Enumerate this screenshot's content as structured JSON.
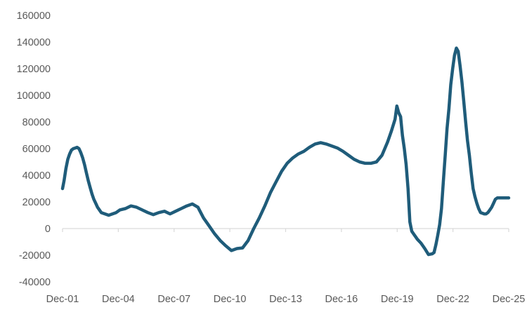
{
  "chart_data": {
    "type": "line",
    "title": "",
    "xlabel": "",
    "ylabel": "",
    "ylim": [
      -40000,
      160000
    ],
    "yticks": [
      160000,
      140000,
      120000,
      100000,
      80000,
      60000,
      40000,
      20000,
      0,
      -20000,
      -40000
    ],
    "xticks": [
      "Dec-01",
      "Dec-04",
      "Dec-07",
      "Dec-10",
      "Dec-13",
      "Dec-16",
      "Dec-19",
      "Dec-22",
      "Dec-25"
    ],
    "x_range": [
      2001.917,
      2025.917
    ],
    "grid": false,
    "legend": "none",
    "line_color": "#1f5c7a",
    "axis_color": "#d9d9d9",
    "series": [
      {
        "x": [
          2001.917,
          2002.0,
          2002.1,
          2002.2,
          2002.3,
          2002.4,
          2002.5,
          2002.6,
          2002.7,
          2002.8,
          2002.9,
          2003.0,
          2003.1,
          2003.2,
          2003.3,
          2003.4,
          2003.5,
          2003.6,
          2003.7,
          2003.8,
          2003.9,
          2004.0,
          2004.2,
          2004.4,
          2004.6,
          2004.8,
          2005.0,
          2005.3,
          2005.6,
          2005.9,
          2006.2,
          2006.5,
          2006.8,
          2007.1,
          2007.4,
          2007.7,
          2008.0,
          2008.3,
          2008.6,
          2008.9,
          2009.2,
          2009.5,
          2009.8,
          2010.1,
          2010.4,
          2010.7,
          2011.0,
          2011.3,
          2011.6,
          2011.9,
          2012.2,
          2012.5,
          2012.8,
          2013.1,
          2013.4,
          2013.7,
          2014.0,
          2014.3,
          2014.6,
          2014.9,
          2015.2,
          2015.5,
          2015.8,
          2016.1,
          2016.4,
          2016.7,
          2017.0,
          2017.3,
          2017.6,
          2017.9,
          2018.2,
          2018.5,
          2018.8,
          2019.1,
          2019.4,
          2019.6,
          2019.8,
          2019.9,
          2020.0,
          2020.1,
          2020.2,
          2020.3,
          2020.4,
          2020.5,
          2020.6,
          2020.7,
          2020.8,
          2020.9,
          2021.0,
          2021.2,
          2021.4,
          2021.6,
          2021.8,
          2021.9,
          2022.0,
          2022.1,
          2022.2,
          2022.3,
          2022.4,
          2022.5,
          2022.6,
          2022.7,
          2022.8,
          2022.9,
          2023.0,
          2023.1,
          2023.2,
          2023.3,
          2023.4,
          2023.5,
          2023.6,
          2023.7,
          2023.8,
          2023.9,
          2024.0,
          2024.1,
          2024.2,
          2024.3,
          2024.4,
          2024.5,
          2024.6,
          2024.7,
          2024.8,
          2024.9,
          2025.0,
          2025.1,
          2025.2,
          2025.3,
          2025.4,
          2025.5,
          2025.6,
          2025.7,
          2025.8,
          2025.917
        ],
        "values": [
          30000,
          36000,
          45000,
          52000,
          56000,
          59000,
          60000,
          60500,
          61000,
          60000,
          57000,
          53000,
          48000,
          42000,
          36000,
          31000,
          26000,
          22000,
          19000,
          16000,
          14000,
          12000,
          11000,
          10000,
          11000,
          12000,
          14000,
          15000,
          17000,
          16000,
          14000,
          12000,
          10500,
          12000,
          13000,
          11000,
          13000,
          15000,
          17000,
          18500,
          16000,
          8000,
          2000,
          -4000,
          -9000,
          -13000,
          -16500,
          -15000,
          -14500,
          -9000,
          0,
          8000,
          17000,
          27000,
          35000,
          43000,
          49000,
          53000,
          56000,
          58000,
          61000,
          63500,
          64500,
          63500,
          62000,
          60500,
          58000,
          55000,
          52000,
          50000,
          49000,
          49000,
          50000,
          55000,
          65000,
          73000,
          82000,
          92000,
          87000,
          84000,
          70000,
          60000,
          48000,
          30000,
          5000,
          -2000,
          -4000,
          -6000,
          -8000,
          -11000,
          -15000,
          -19500,
          -19000,
          -18000,
          -12000,
          -5000,
          3000,
          15000,
          35000,
          55000,
          75000,
          90000,
          108000,
          120000,
          130000,
          135500,
          133000,
          122000,
          110000,
          95000,
          80000,
          66000,
          55000,
          42000,
          30000,
          24000,
          19000,
          15000,
          12000,
          11500,
          11000,
          11000,
          12000,
          14000,
          16000,
          19000,
          22000,
          23000,
          23000,
          23000,
          23000,
          23000,
          23000,
          23000
        ]
      }
    ]
  }
}
